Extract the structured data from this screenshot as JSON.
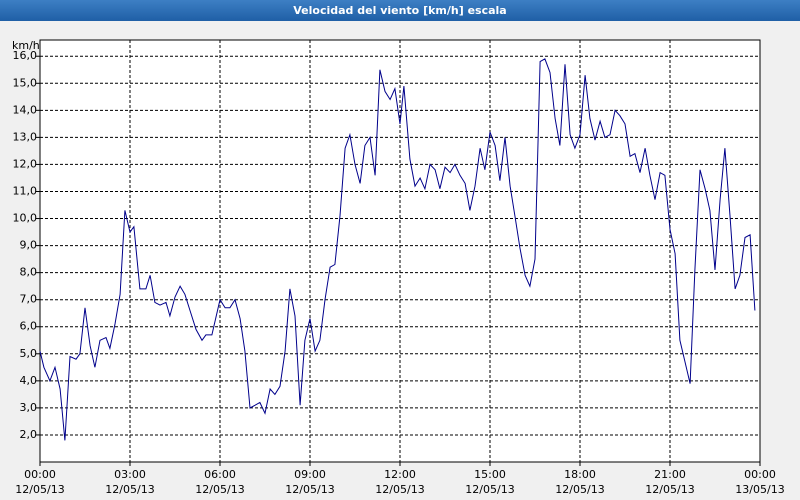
{
  "chart_data": {
    "type": "line",
    "title": "Velocidad del viento [km/h] escala",
    "y_unit": "km/h",
    "color": "#00008b",
    "grid": true,
    "xlim": [
      0,
      24
    ],
    "ylim": [
      1,
      16.6
    ],
    "xticks": [
      {
        "value": 0,
        "label": "00:00",
        "sublabel": "12/05/13"
      },
      {
        "value": 3,
        "label": "03:00",
        "sublabel": "12/05/13"
      },
      {
        "value": 6,
        "label": "06:00",
        "sublabel": "12/05/13"
      },
      {
        "value": 9,
        "label": "09:00",
        "sublabel": "12/05/13"
      },
      {
        "value": 12,
        "label": "12:00",
        "sublabel": "12/05/13"
      },
      {
        "value": 15,
        "label": "15:00",
        "sublabel": "12/05/13"
      },
      {
        "value": 18,
        "label": "18:00",
        "sublabel": "12/05/13"
      },
      {
        "value": 21,
        "label": "21:00",
        "sublabel": "12/05/13"
      },
      {
        "value": 24,
        "label": "00:00",
        "sublabel": "13/05/13"
      }
    ],
    "yticks": [
      {
        "value": 2,
        "label": "2,0"
      },
      {
        "value": 3,
        "label": "3,0"
      },
      {
        "value": 4,
        "label": "4,0"
      },
      {
        "value": 5,
        "label": "5,0"
      },
      {
        "value": 6,
        "label": "6,0"
      },
      {
        "value": 7,
        "label": "7,0"
      },
      {
        "value": 8,
        "label": "8,0"
      },
      {
        "value": 9,
        "label": "9,0"
      },
      {
        "value": 10,
        "label": "10,0"
      },
      {
        "value": 11,
        "label": "11,0"
      },
      {
        "value": 12,
        "label": "12,0"
      },
      {
        "value": 13,
        "label": "13,0"
      },
      {
        "value": 14,
        "label": "14,0"
      },
      {
        "value": 15,
        "label": "15,0"
      },
      {
        "value": 16,
        "label": "16,0"
      }
    ],
    "x": [
      0,
      0.13,
      0.33,
      0.5,
      0.67,
      0.83,
      1,
      1.2,
      1.33,
      1.5,
      1.67,
      1.83,
      2,
      2.2,
      2.33,
      2.5,
      2.67,
      2.83,
      3,
      3.13,
      3.33,
      3.53,
      3.67,
      3.83,
      4,
      4.2,
      4.33,
      4.5,
      4.67,
      4.83,
      5,
      5.2,
      5.4,
      5.53,
      5.73,
      6,
      6.17,
      6.33,
      6.5,
      6.67,
      6.83,
      7,
      7.17,
      7.33,
      7.5,
      7.67,
      7.83,
      8,
      8.17,
      8.33,
      8.5,
      8.67,
      8.83,
      9,
      9.17,
      9.33,
      9.5,
      9.67,
      9.83,
      10,
      10.17,
      10.33,
      10.5,
      10.67,
      10.83,
      11,
      11.17,
      11.33,
      11.5,
      11.67,
      11.83,
      12,
      12.13,
      12.33,
      12.5,
      12.67,
      12.83,
      13,
      13.17,
      13.33,
      13.5,
      13.67,
      13.83,
      14,
      14.17,
      14.33,
      14.5,
      14.67,
      14.83,
      15,
      15.17,
      15.33,
      15.5,
      15.67,
      15.83,
      16,
      16.17,
      16.33,
      16.5,
      16.67,
      16.83,
      17,
      17.17,
      17.33,
      17.5,
      17.67,
      17.83,
      18,
      18.17,
      18.33,
      18.5,
      18.67,
      18.83,
      19,
      19.17,
      19.33,
      19.5,
      19.67,
      19.83,
      20,
      20.17,
      20.33,
      20.5,
      20.67,
      20.83,
      21,
      21.17,
      21.33,
      21.5,
      21.67,
      21.83,
      22,
      22.17,
      22.33,
      22.5,
      22.67,
      22.83,
      23,
      23.17,
      23.33,
      23.5,
      23.67,
      23.83
    ],
    "values": [
      5.1,
      4.5,
      4.0,
      4.5,
      3.7,
      1.8,
      4.9,
      4.8,
      5.0,
      6.7,
      5.3,
      4.5,
      5.5,
      5.6,
      5.2,
      6.1,
      7.2,
      10.3,
      9.5,
      9.7,
      7.4,
      7.4,
      7.9,
      6.9,
      6.8,
      6.9,
      6.4,
      7.1,
      7.5,
      7.2,
      6.6,
      5.9,
      5.5,
      5.7,
      5.7,
      7.0,
      6.7,
      6.7,
      7.0,
      6.3,
      5.1,
      3.0,
      3.1,
      3.2,
      2.8,
      3.7,
      3.5,
      3.8,
      5.1,
      7.4,
      6.4,
      3.1,
      5.5,
      6.3,
      5.1,
      5.5,
      7.0,
      8.2,
      8.3,
      10.1,
      12.6,
      13.1,
      12.0,
      11.3,
      12.7,
      13.0,
      11.6,
      15.5,
      14.7,
      14.4,
      14.8,
      13.5,
      14.9,
      12.2,
      11.2,
      11.5,
      11.1,
      12.0,
      11.8,
      11.1,
      11.9,
      11.7,
      12.0,
      11.6,
      11.3,
      10.3,
      11.2,
      12.6,
      11.8,
      13.2,
      12.7,
      11.4,
      13.0,
      11.2,
      10.1,
      8.9,
      7.9,
      7.5,
      8.5,
      15.8,
      15.9,
      15.4,
      13.7,
      12.7,
      15.7,
      13.1,
      12.6,
      13.1,
      15.3,
      13.7,
      12.9,
      13.6,
      13.0,
      13.1,
      14.0,
      13.8,
      13.5,
      12.3,
      12.4,
      11.7,
      12.6,
      11.6,
      10.7,
      11.7,
      11.6,
      9.6,
      8.7,
      5.5,
      4.7,
      3.9,
      8.1,
      11.8,
      11.1,
      10.3,
      8.1,
      10.7,
      12.6,
      10.1,
      7.4,
      7.9,
      9.3,
      9.4,
      6.6
    ]
  }
}
